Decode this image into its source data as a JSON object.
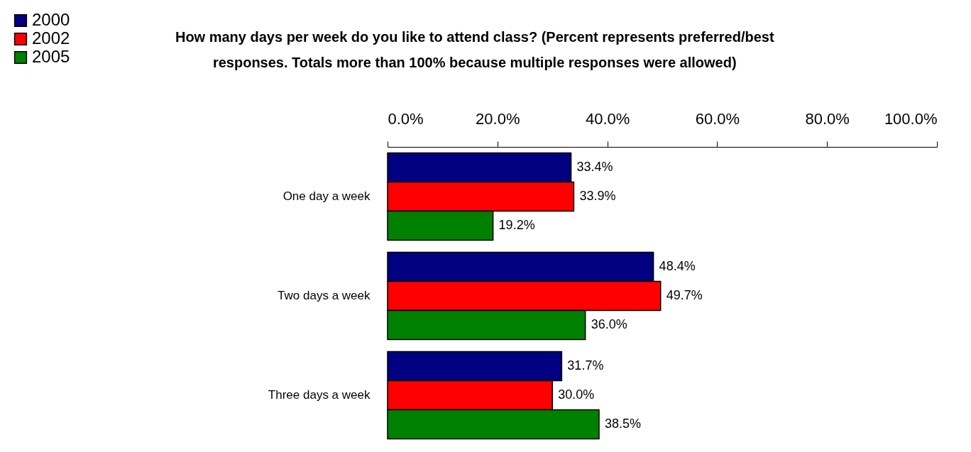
{
  "chart_data": {
    "type": "bar",
    "orientation": "horizontal",
    "title": "How many days per week do you like to attend class? (Percent represents preferred/best responses. Totals more than 100% because multiple responses were allowed)",
    "categories": [
      "One day a week",
      "Two days a week",
      "Three days a week"
    ],
    "series": [
      {
        "name": "2000",
        "color": "#000080",
        "values": [
          33.4,
          48.4,
          31.7
        ],
        "value_labels": [
          "33.4%",
          "48.4%",
          "31.7%"
        ]
      },
      {
        "name": "2002",
        "color": "#ff0000",
        "values": [
          33.9,
          49.7,
          30.0
        ],
        "value_labels": [
          "33.9%",
          "49.7%",
          "30.0%"
        ]
      },
      {
        "name": "2005",
        "color": "#008000",
        "values": [
          19.2,
          36.0,
          38.5
        ],
        "value_labels": [
          "19.2%",
          "36.0%",
          "38.5%"
        ]
      }
    ],
    "xlim": [
      0,
      100
    ],
    "xticks": [
      {
        "value": 0,
        "label": "0.0%"
      },
      {
        "value": 20,
        "label": "20.0%"
      },
      {
        "value": 40,
        "label": "40.0%"
      },
      {
        "value": 60,
        "label": "60.0%"
      },
      {
        "value": 80,
        "label": "80.0%"
      },
      {
        "value": 100,
        "label": "100.0%"
      }
    ],
    "grid": false,
    "legend": "top left"
  }
}
